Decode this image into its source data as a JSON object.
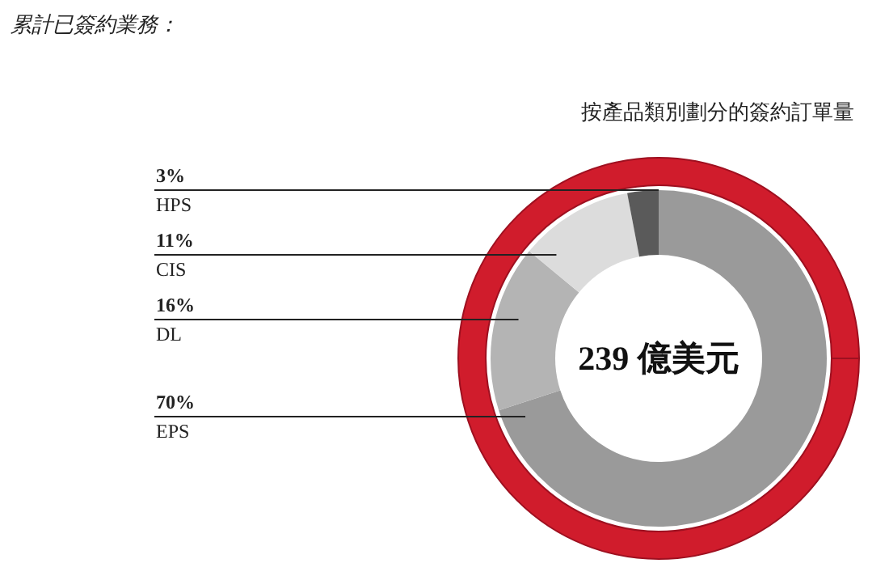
{
  "chart_data": {
    "type": "donut",
    "title": "累計已簽約業務：",
    "subtitle": "按產品類別劃分的簽約訂單量",
    "categories": [
      "EPS",
      "DL",
      "CIS",
      "HPS"
    ],
    "values": [
      70,
      16,
      11,
      3
    ],
    "value_labels": [
      "70%",
      "16%",
      "11%",
      "3%"
    ],
    "colors": [
      "#9a9a9a",
      "#b4b4b4",
      "#dcdcdc",
      "#5a5a5a"
    ],
    "annotations": [
      "239 億美元"
    ]
  }
}
